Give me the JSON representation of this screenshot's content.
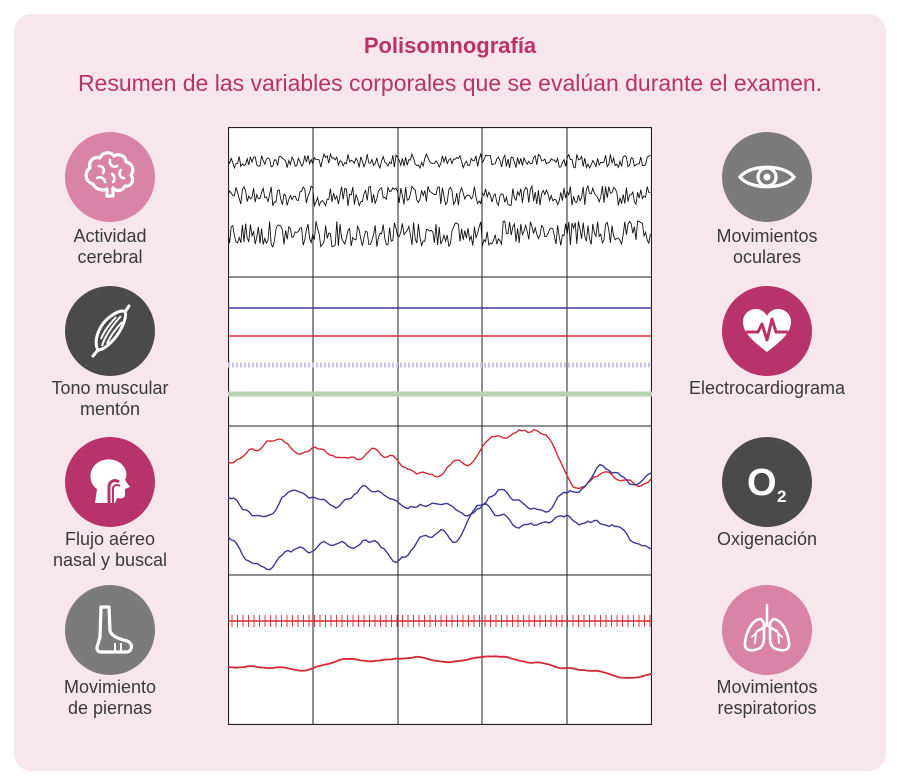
{
  "title": "Polisomnografía",
  "subtitle": "Resumen de las variables corporales que se evalúan durante el examen.",
  "colors": {
    "accent": "#b8336a",
    "card_bg": "#f7e6ec",
    "pink_light": "#d983a6",
    "pink_dark": "#b8336a",
    "gray_dark": "#4a4a4a",
    "gray_mid": "#7b7b7b",
    "trace_black": "#111111",
    "trace_red": "#d42a35",
    "trace_blue": "#3c3a93",
    "trace_lavender": "#c9c7ec",
    "trace_green": "#b7d3b3"
  },
  "left_items": [
    {
      "icon": "brain-icon",
      "line1": "Actividad",
      "line2": "cerebral"
    },
    {
      "icon": "muscle-icon",
      "line1": "Tono muscular",
      "line2": "mentón"
    },
    {
      "icon": "head-airway-icon",
      "line1": "Flujo aéreo",
      "line2": "nasal y buscal"
    },
    {
      "icon": "foot-icon",
      "line1": "Movimiento",
      "line2": "de piernas"
    }
  ],
  "right_items": [
    {
      "icon": "eye-icon",
      "line1": "Movimientos",
      "line2": "oculares"
    },
    {
      "icon": "heart-ecg-icon",
      "line1": "Electrocardiograma",
      "line2": ""
    },
    {
      "icon": "oxygen-icon",
      "line1": "Oxigenación",
      "line2": "",
      "glyph_main": "O",
      "glyph_sub": "2"
    },
    {
      "icon": "lungs-icon",
      "line1": "Movimientos",
      "line2": "respiratorios"
    }
  ]
}
